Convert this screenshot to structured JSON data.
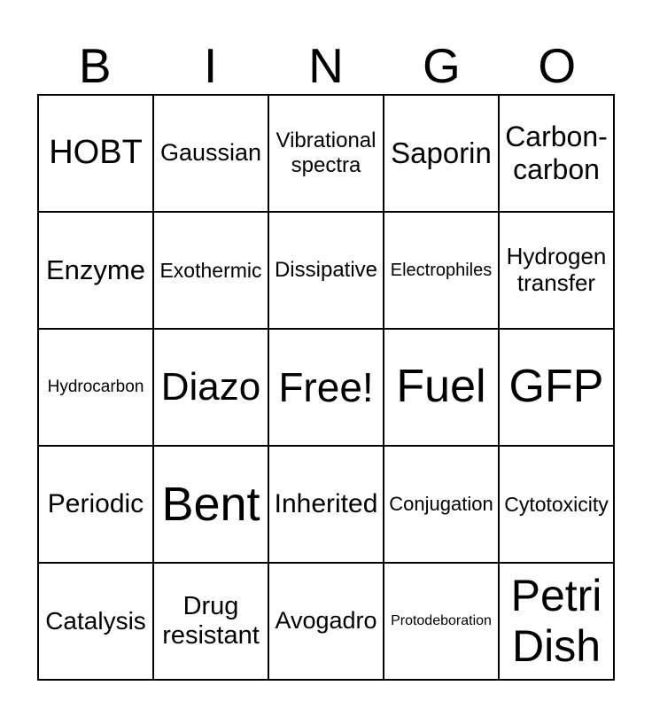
{
  "header": {
    "letters": [
      "B",
      "I",
      "N",
      "G",
      "O"
    ]
  },
  "card": {
    "rows": 5,
    "cols": 5,
    "free_cell_index": 12,
    "cells": [
      {
        "label": "HOBT"
      },
      {
        "label": "Gaussian"
      },
      {
        "label": "Vibrational spectra"
      },
      {
        "label": "Saporin"
      },
      {
        "label": "Carbon-carbon"
      },
      {
        "label": "Enzyme"
      },
      {
        "label": "Exothermic"
      },
      {
        "label": "Dissipative"
      },
      {
        "label": "Electrophiles"
      },
      {
        "label": "Hydrogen transfer"
      },
      {
        "label": "Hydrocarbon"
      },
      {
        "label": "Diazo"
      },
      {
        "label": "Free!"
      },
      {
        "label": "Fuel"
      },
      {
        "label": "GFP"
      },
      {
        "label": "Periodic"
      },
      {
        "label": "Bent"
      },
      {
        "label": "Inherited"
      },
      {
        "label": "Conjugation"
      },
      {
        "label": "Cytotoxicity"
      },
      {
        "label": "Catalysis"
      },
      {
        "label": "Drug resistant"
      },
      {
        "label": "Avogadro"
      },
      {
        "label": "Protodeboration"
      },
      {
        "label": "Petri Dish"
      }
    ]
  },
  "colors": {
    "background": "#ffffff",
    "border": "#000000",
    "text": "#000000"
  }
}
